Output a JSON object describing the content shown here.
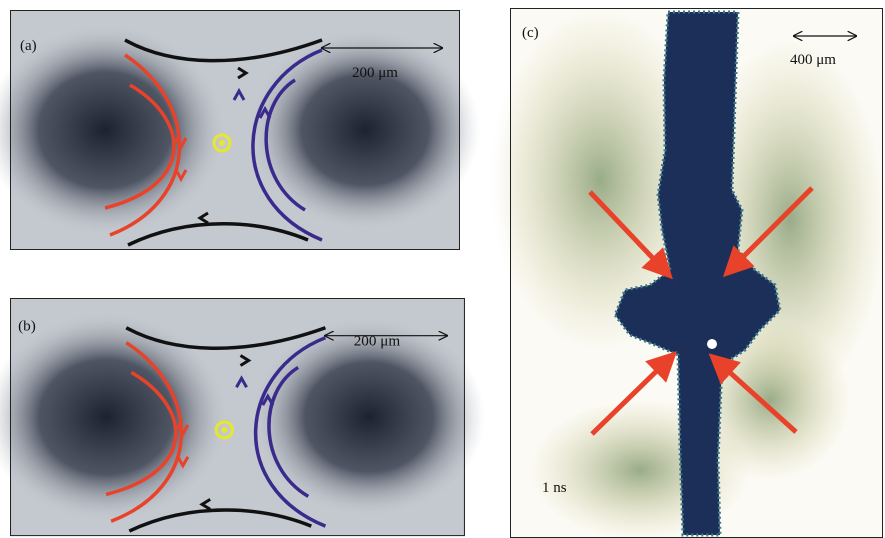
{
  "panels": [
    {
      "label": "(a)",
      "scale_bar": "200 μm"
    },
    {
      "label": "(b)",
      "scale_bar": "200 μm"
    },
    {
      "label": "(c)",
      "scale_bar": "400 μm",
      "time": "1 ns"
    }
  ]
}
